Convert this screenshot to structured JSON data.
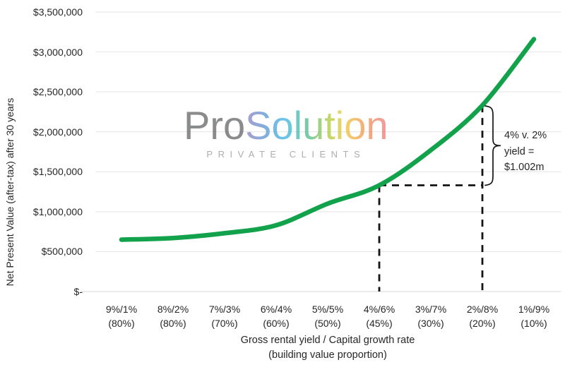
{
  "chart_data": {
    "type": "line",
    "title": "",
    "categories": [
      "9%/1%",
      "8%/2%",
      "7%/3%",
      "6%/4%",
      "5%/5%",
      "4%/6%",
      "3%/7%",
      "2%/8%",
      "1%/9%"
    ],
    "category_proportions": [
      "(80%)",
      "(80%)",
      "(70%)",
      "(60%)",
      "(50%)",
      "(45%)",
      "(30%)",
      "(20%)",
      "(10%)"
    ],
    "values": [
      650000,
      670000,
      730000,
      830000,
      1100000,
      1330000,
      1770000,
      2332000,
      3160000
    ],
    "xlabel_line1": "Gross rental yield / Capital growth rate",
    "xlabel_line2": "(building value proportion)",
    "ylabel": "Net Present Value (after-tax) after 30 years",
    "ylim": [
      0,
      3500000
    ],
    "yticks": [
      {
        "value": 0,
        "label": "$-"
      },
      {
        "value": 500000,
        "label": "$500,000"
      },
      {
        "value": 1000000,
        "label": "$1,000,000"
      },
      {
        "value": 1500000,
        "label": "$1,500,000"
      },
      {
        "value": 2000000,
        "label": "$2,000,000"
      },
      {
        "value": 2500000,
        "label": "$2,500,000"
      },
      {
        "value": 3000000,
        "label": "$3,000,000"
      },
      {
        "value": 3500000,
        "label": "$3,500,000"
      }
    ],
    "grid": true,
    "legend": "none",
    "line_color": "#12A24B"
  },
  "annotation": {
    "label_lines": [
      "4% v. 2%",
      "yield =",
      "$1.002m"
    ],
    "from_category": "4%/6%",
    "to_category": "2%/8%",
    "from_index": 5,
    "to_index": 7,
    "dash_color": "#141414",
    "brace_color": "#141414"
  },
  "watermark": {
    "brand_gray": "Pro",
    "brand_gradient": "Solution",
    "subtitle": "PRIVATE CLIENTS"
  },
  "colors": {
    "grid": "#E3E3E3",
    "axis_line": "#D9D9D9",
    "text": "#262626",
    "background": "#FFFFFF"
  }
}
